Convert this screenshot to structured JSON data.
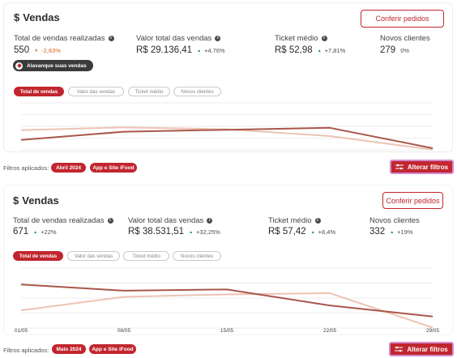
{
  "panels": [
    {
      "title": "Vendas",
      "conferir_label": "Conferir pedidos",
      "metrics": [
        {
          "label": "Total de vendas realizadas",
          "value": "550",
          "change": "-2,83%",
          "direction": "down"
        },
        {
          "label": "Valor total das vendas",
          "value": "R$ 29.136,41",
          "change": "+4,76%",
          "direction": "up"
        },
        {
          "label": "Ticket médio",
          "value": "R$ 52,98",
          "change": "+7,81%",
          "direction": "up"
        },
        {
          "label": "Novos clientes",
          "value": "279",
          "change": "0%",
          "direction": "none"
        }
      ],
      "promo_chip": "Alavanque suas vendas",
      "tabs": [
        "Total de vendas",
        "Valor das vendas",
        "Ticket médio",
        "Novos clientes"
      ],
      "active_tab": 0,
      "filters_label": "Filtros aplicados:",
      "filters": [
        "Abril 2024",
        "App e Site iFood"
      ],
      "alter_label": "Alterar filtros",
      "x_labels": []
    },
    {
      "title": "Vendas",
      "conferir_label": "Conferir pedidos",
      "metrics": [
        {
          "label": "Total de vendas realizadas",
          "value": "671",
          "change": "+22%",
          "direction": "up"
        },
        {
          "label": "Valor total das vendas",
          "value": "R$ 38.531,51",
          "change": "+32,25%",
          "direction": "up"
        },
        {
          "label": "Ticket médio",
          "value": "R$ 57,42",
          "change": "+8,4%",
          "direction": "up"
        },
        {
          "label": "Novos clientes",
          "value": "332",
          "change": "+19%",
          "direction": "up"
        }
      ],
      "promo_chip": "",
      "tabs": [
        "Total de vendas",
        "Valor das vendas",
        "Ticket médio",
        "Novos clientes"
      ],
      "active_tab": 0,
      "filters_label": "Filtros aplicados:",
      "filters": [
        "Maio 2024",
        "App e Site iFood"
      ],
      "alter_label": "Alterar filtros",
      "x_labels": [
        "01/05",
        "08/05",
        "15/05",
        "22/05",
        "29/05"
      ]
    }
  ],
  "colors": {
    "accent": "#c1262f",
    "line_current": "#a8574a",
    "line_previous": "#ecc3b4",
    "positive": "#1f8f4e",
    "negative": "#d2691e"
  },
  "chart_data": [
    {
      "type": "line",
      "title": "",
      "series": [
        {
          "values": [
            22,
            39,
            43,
            47,
            5
          ]
        },
        {
          "values": [
            42,
            48,
            44,
            30,
            2
          ]
        }
      ]
    },
    {
      "type": "line",
      "title": "",
      "categories": [
        "01/05",
        "08/05",
        "15/05",
        "22/05",
        "29/05"
      ],
      "series": [
        {
          "values": [
            72,
            62,
            64,
            38,
            20
          ]
        },
        {
          "values": [
            30,
            52,
            56,
            58,
            2
          ]
        }
      ]
    }
  ]
}
